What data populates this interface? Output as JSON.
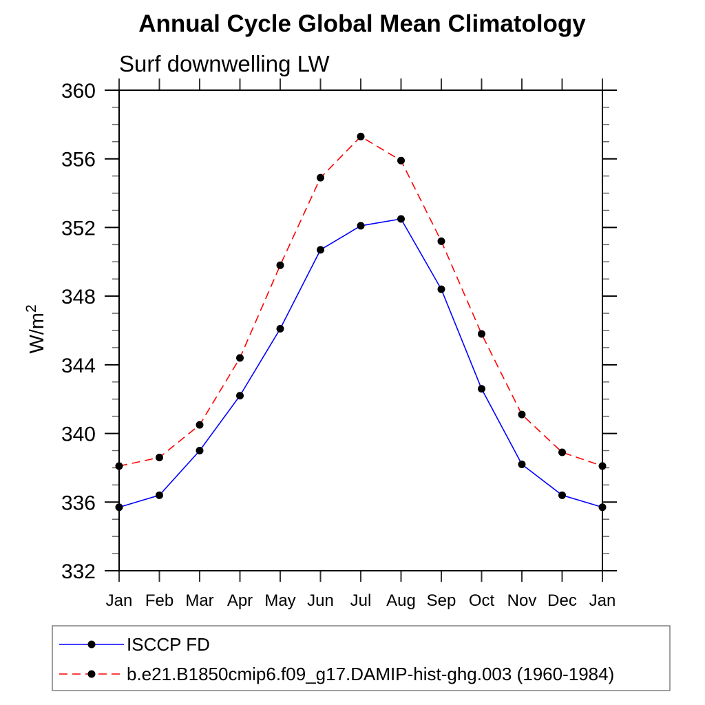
{
  "page": {
    "background": "#ffffff"
  },
  "chart_data": {
    "type": "line",
    "title": "Annual Cycle Global Mean Climatology",
    "subtitle": "Surf downwelling LW",
    "ylabel": {
      "text": "W/m",
      "superscript": "2"
    },
    "xlabel": "",
    "categories": [
      "Jan",
      "Feb",
      "Mar",
      "Apr",
      "May",
      "Jun",
      "Jul",
      "Aug",
      "Sep",
      "Oct",
      "Nov",
      "Dec",
      "Jan"
    ],
    "ylim": [
      332,
      360
    ],
    "y_major_ticks": [
      332,
      336,
      340,
      344,
      348,
      352,
      356,
      360
    ],
    "y_minor_step": 1,
    "grid": false,
    "frame": true,
    "legend_position": "bottom-left",
    "axis_color": "#000000",
    "minor_tick_color": "#666666",
    "marker_color": "#000000",
    "legend_border_color": "#7f7f7f",
    "series": [
      {
        "name": "ISCCP FD",
        "color": "#0000ff",
        "line_style": "solid",
        "marker": "circle",
        "values": [
          335.7,
          336.4,
          339.0,
          342.2,
          346.1,
          350.7,
          352.1,
          352.5,
          348.4,
          342.6,
          338.2,
          336.4,
          335.7
        ]
      },
      {
        "name": "b.e21.B1850cmip6.f09_g17.DAMIP-hist-ghg.003 (1960-1984)",
        "color": "#ff0000",
        "line_style": "dashed",
        "marker": "circle",
        "values": [
          338.1,
          338.6,
          340.5,
          344.4,
          349.8,
          354.9,
          357.3,
          355.9,
          351.2,
          345.8,
          341.1,
          338.9,
          338.1
        ]
      }
    ]
  }
}
